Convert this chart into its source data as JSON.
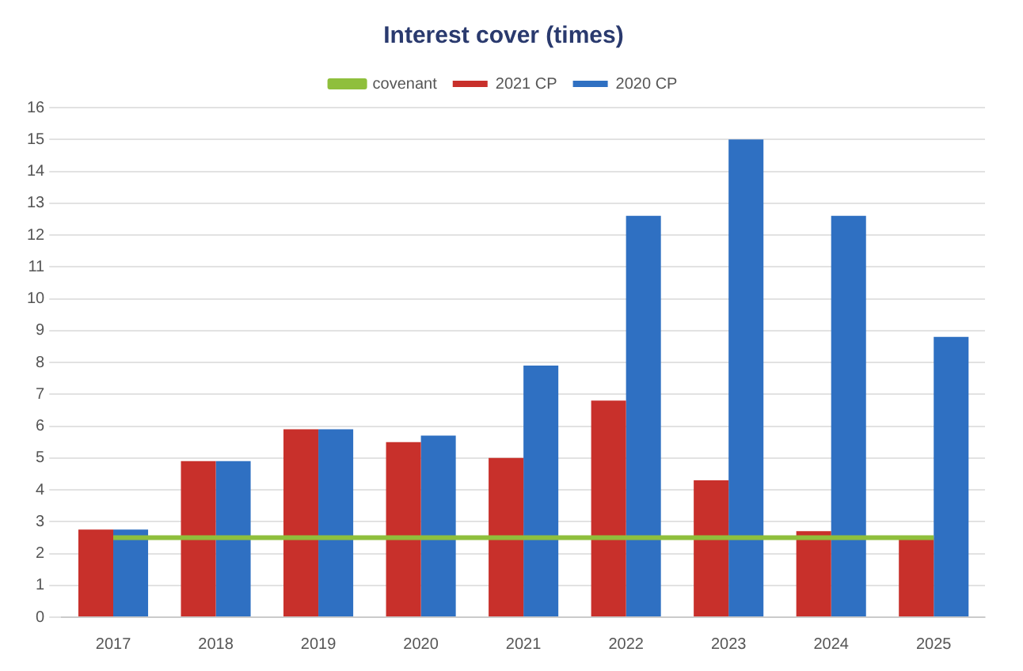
{
  "chart_data": {
    "type": "bar",
    "title": "Interest cover (times)",
    "categories": [
      "2017",
      "2018",
      "2019",
      "2020",
      "2021",
      "2022",
      "2023",
      "2024",
      "2025"
    ],
    "series": [
      {
        "name": "2021 CP",
        "color": "#c8302b",
        "values": [
          2.75,
          4.9,
          5.9,
          5.5,
          5.0,
          6.8,
          4.3,
          2.7,
          2.5
        ]
      },
      {
        "name": "2020 CP",
        "color": "#2f70c2",
        "values": [
          2.75,
          4.9,
          5.9,
          5.7,
          7.9,
          12.6,
          15.0,
          12.6,
          8.8
        ]
      },
      {
        "name": "covenant",
        "type": "line",
        "color": "#8fbf3c",
        "values": [
          2.5,
          2.5,
          2.5,
          2.5,
          2.5,
          2.5,
          2.5,
          2.5,
          2.5
        ]
      }
    ],
    "ylim": [
      0,
      16
    ],
    "yticks": [
      0,
      1,
      2,
      3,
      4,
      5,
      6,
      7,
      8,
      9,
      10,
      11,
      12,
      13,
      14,
      15,
      16
    ],
    "grid": "y",
    "legend": "top",
    "marker": "none"
  }
}
